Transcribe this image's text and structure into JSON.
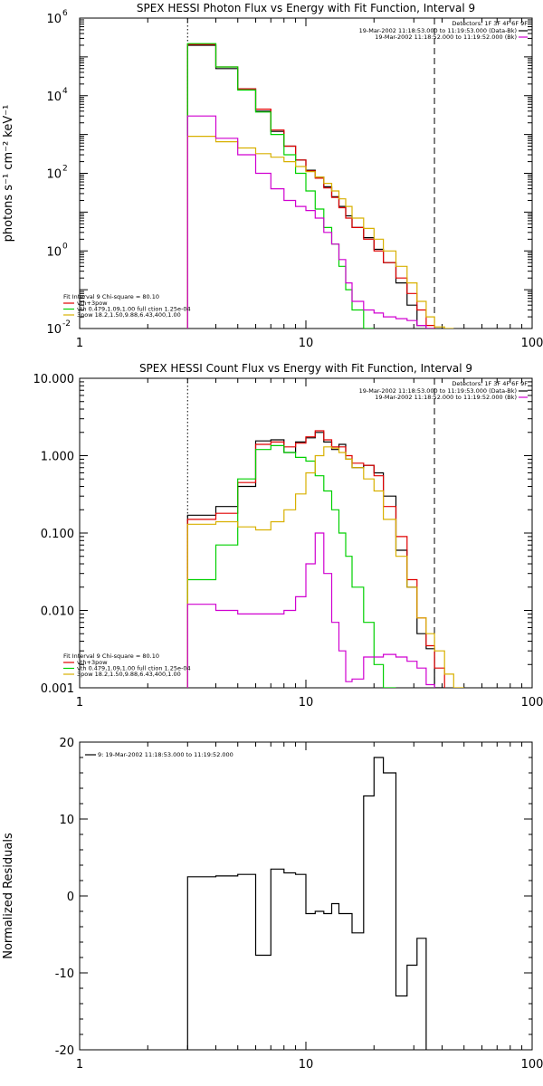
{
  "colors": {
    "black": "#000000",
    "red": "#e00000",
    "green": "#00d000",
    "magenta": "#d000d0",
    "yellow": "#d8b000"
  },
  "chart_data": [
    {
      "type": "line",
      "title": "SPEX HESSI Photon Flux vs Energy with Fit Function, Interval 9",
      "xlabel": "",
      "ylabel": "photons s⁻¹ cm⁻² keV⁻¹",
      "xscale": "log",
      "yscale": "log",
      "xlim": [
        1,
        100
      ],
      "ylim": [
        0.01,
        1000000
      ],
      "x_ticks": [
        "1",
        "10",
        "100"
      ],
      "y_ticks": [
        {
          "v": 0.01,
          "b": "10",
          "e": "-2"
        },
        {
          "v": 1,
          "b": "10",
          "e": "0"
        },
        {
          "v": 100,
          "b": "10",
          "e": "2"
        },
        {
          "v": 10000,
          "b": "10",
          "e": "4"
        },
        {
          "v": 1000000,
          "b": "10",
          "e": "6"
        }
      ],
      "vlines": [
        {
          "x": 3,
          "style": "dotted"
        },
        {
          "x": 37,
          "style": "dashed"
        }
      ],
      "legend_top": {
        "placement": "top-right",
        "header": "Detectors: 1F 3F 4F 6F 9F",
        "entries": [
          {
            "label": "19-Mar-2002 11:18:53.000 to 11:19:53.000 (Data-Bk)",
            "color": "#000000"
          },
          {
            "label": "19-Mar-2002 11:18:52.000 to 11:19:52.000 (Bk)",
            "color": "#d000d0"
          }
        ]
      },
      "legend_bottom": {
        "placement": "bottom-left",
        "header": "Fit Interval 9   Chi-square = 80.10",
        "entries": [
          {
            "label": "vth+3pow",
            "color": "#e00000"
          },
          {
            "label": "vth 0.479,1.09,1.00  full ction 1.25e-04",
            "color": "#00d000"
          },
          {
            "label": "3pow 18.2,1.50,9.88,6.43,400,1.00",
            "color": "#d8b000"
          }
        ]
      },
      "edges": [
        3,
        4,
        5,
        6,
        7,
        8,
        9,
        10,
        11,
        12,
        13,
        14,
        15,
        16,
        18,
        20,
        22,
        25,
        28,
        31,
        34,
        37,
        41,
        45,
        50
      ],
      "series": [
        {
          "name": "Data-Bk",
          "color": "#000000",
          "values": [
            200000,
            50000,
            15000,
            4000,
            1200,
            500,
            220,
            120,
            80,
            45,
            25,
            14,
            8,
            4,
            2.2,
            1.1,
            0.5,
            0.15,
            0.04,
            0.012,
            0.01
          ]
        },
        {
          "name": "vth+3pow",
          "color": "#e00000",
          "values": [
            210000,
            55000,
            15000,
            4500,
            1300,
            500,
            220,
            115,
            75,
            42,
            24,
            13,
            7,
            4,
            2,
            1,
            0.5,
            0.2,
            0.08,
            0.03,
            0.012
          ]
        },
        {
          "name": "vth",
          "color": "#00d000",
          "values": [
            220000,
            55000,
            14000,
            3800,
            1000,
            300,
            100,
            35,
            12,
            4,
            1.5,
            0.4,
            0.1,
            0.03,
            0.01
          ]
        },
        {
          "name": "3pow",
          "color": "#d8b000",
          "values": [
            900,
            650,
            450,
            320,
            260,
            200,
            150,
            110,
            80,
            55,
            35,
            22,
            14,
            7,
            3.8,
            2,
            1,
            0.4,
            0.15,
            0.05,
            0.02,
            0.011,
            0.01
          ]
        },
        {
          "name": "Bk",
          "color": "#d000d0",
          "values": [
            3000,
            800,
            300,
            100,
            40,
            20,
            14,
            11,
            7,
            3,
            1.5,
            0.6,
            0.15,
            0.05,
            0.03,
            0.025,
            0.02,
            0.018,
            0.016,
            0.012,
            0.01
          ]
        }
      ]
    },
    {
      "type": "line",
      "title": "SPEX HESSI Count Flux vs Energy with Fit Function, Interval 9",
      "xlabel": "",
      "ylabel": "",
      "xscale": "log",
      "yscale": "log",
      "xlim": [
        1,
        100
      ],
      "ylim": [
        0.001,
        10
      ],
      "x_ticks": [
        "1",
        "10",
        "100"
      ],
      "y_ticks_text": [
        {
          "v": 0.001,
          "t": "0.001"
        },
        {
          "v": 0.01,
          "t": "0.010"
        },
        {
          "v": 0.1,
          "t": "0.100"
        },
        {
          "v": 1,
          "t": "1.000"
        },
        {
          "v": 10,
          "t": "10.000"
        }
      ],
      "vlines": [
        {
          "x": 3,
          "style": "dotted"
        },
        {
          "x": 37,
          "style": "dashed"
        }
      ],
      "legend_top": {
        "placement": "top-right",
        "header": "Detectors: 1F 3F 4F 6F 9F",
        "entries": [
          {
            "label": "19-Mar-2002 11:18:53.000 to 11:19:53.000 (Data-Bk)",
            "color": "#000000"
          },
          {
            "label": "19-Mar-2002 11:18:52.000 to 11:19:52.000 (Bk)",
            "color": "#d000d0"
          }
        ]
      },
      "legend_bottom": {
        "placement": "bottom-left",
        "header": "Fit Interval 9   Chi-square = 80.10",
        "entries": [
          {
            "label": "vth+3pow",
            "color": "#e00000"
          },
          {
            "label": "vth 0.479,1.09,1.00  full ction 1.25e-04",
            "color": "#00d000"
          },
          {
            "label": "3pow 18.2,1.50,9.88,6.43,400,1.00",
            "color": "#d8b000"
          }
        ]
      },
      "edges": [
        3,
        4,
        5,
        6,
        7,
        8,
        9,
        10,
        11,
        12,
        13,
        14,
        15,
        16,
        18,
        20,
        22,
        25,
        28,
        31,
        34,
        37,
        41,
        45,
        50
      ],
      "series": [
        {
          "name": "Data-Bk",
          "color": "#000000",
          "values": [
            0.17,
            0.22,
            0.4,
            1.55,
            1.6,
            1.1,
            1.5,
            1.7,
            2,
            1.5,
            1.2,
            1.4,
            0.9,
            0.7,
            0.75,
            0.6,
            0.3,
            0.06,
            0.02,
            0.005,
            0.0032,
            0.001
          ]
        },
        {
          "name": "vth+3pow",
          "color": "#e00000",
          "values": [
            0.15,
            0.18,
            0.45,
            1.4,
            1.5,
            1.3,
            1.45,
            1.75,
            2.1,
            1.6,
            1.3,
            1.3,
            1,
            0.8,
            0.75,
            0.55,
            0.22,
            0.09,
            0.025,
            0.008,
            0.0035,
            0.0018
          ]
        },
        {
          "name": "vth",
          "color": "#00d000",
          "values": [
            0.025,
            0.07,
            0.5,
            1.2,
            1.35,
            1.1,
            0.95,
            0.85,
            0.55,
            0.35,
            0.2,
            0.1,
            0.05,
            0.02,
            0.007,
            0.002,
            0.001
          ]
        },
        {
          "name": "3pow",
          "color": "#d8b000",
          "values": [
            0.13,
            0.14,
            0.12,
            0.11,
            0.14,
            0.2,
            0.32,
            0.6,
            1,
            1.3,
            1.25,
            1.1,
            0.9,
            0.7,
            0.5,
            0.35,
            0.15,
            0.05,
            0.02,
            0.008,
            0.005,
            0.003,
            0.0015,
            0.001
          ]
        },
        {
          "name": "Bk",
          "color": "#d000d0",
          "values": [
            0.012,
            0.01,
            0.009,
            0.009,
            0.009,
            0.01,
            0.015,
            0.04,
            0.1,
            0.03,
            0.007,
            0.003,
            0.0012,
            0.0013,
            0.0025,
            0.0025,
            0.0027,
            0.0025,
            0.0022,
            0.0018,
            0.0011
          ]
        }
      ]
    },
    {
      "type": "line",
      "title": "",
      "xlabel": "",
      "ylabel": "Normalized Residuals",
      "xscale": "log",
      "yscale": "linear",
      "xlim": [
        1,
        100
      ],
      "ylim": [
        -20,
        20
      ],
      "x_ticks": [
        "1",
        "10",
        "100"
      ],
      "y_ticks_text": [
        {
          "v": -20,
          "t": "-20"
        },
        {
          "v": -10,
          "t": "-10"
        },
        {
          "v": 0,
          "t": "0"
        },
        {
          "v": 10,
          "t": "10"
        },
        {
          "v": 20,
          "t": "20"
        }
      ],
      "legend_top": {
        "placement": "top-left",
        "entries": [
          {
            "label": "9: 19-Mar-2002 11:18:53.000 to 11:19:52.000",
            "color": "#000000"
          }
        ]
      },
      "edges": [
        3,
        4,
        5,
        6,
        7,
        8,
        9,
        10,
        11,
        12,
        13,
        14,
        15,
        16,
        18,
        20,
        22,
        25,
        28,
        31,
        34,
        37
      ],
      "series": [
        {
          "name": "residuals",
          "color": "#000000",
          "values": [
            2.5,
            2.6,
            2.8,
            -7.7,
            3.5,
            3,
            2.8,
            -2.3,
            -2,
            -2.3,
            -1,
            -2.3,
            -2.3,
            -4.8,
            13,
            18,
            16,
            -13,
            -9,
            -5.5
          ],
          "drop_to_bottom": true
        }
      ]
    }
  ]
}
